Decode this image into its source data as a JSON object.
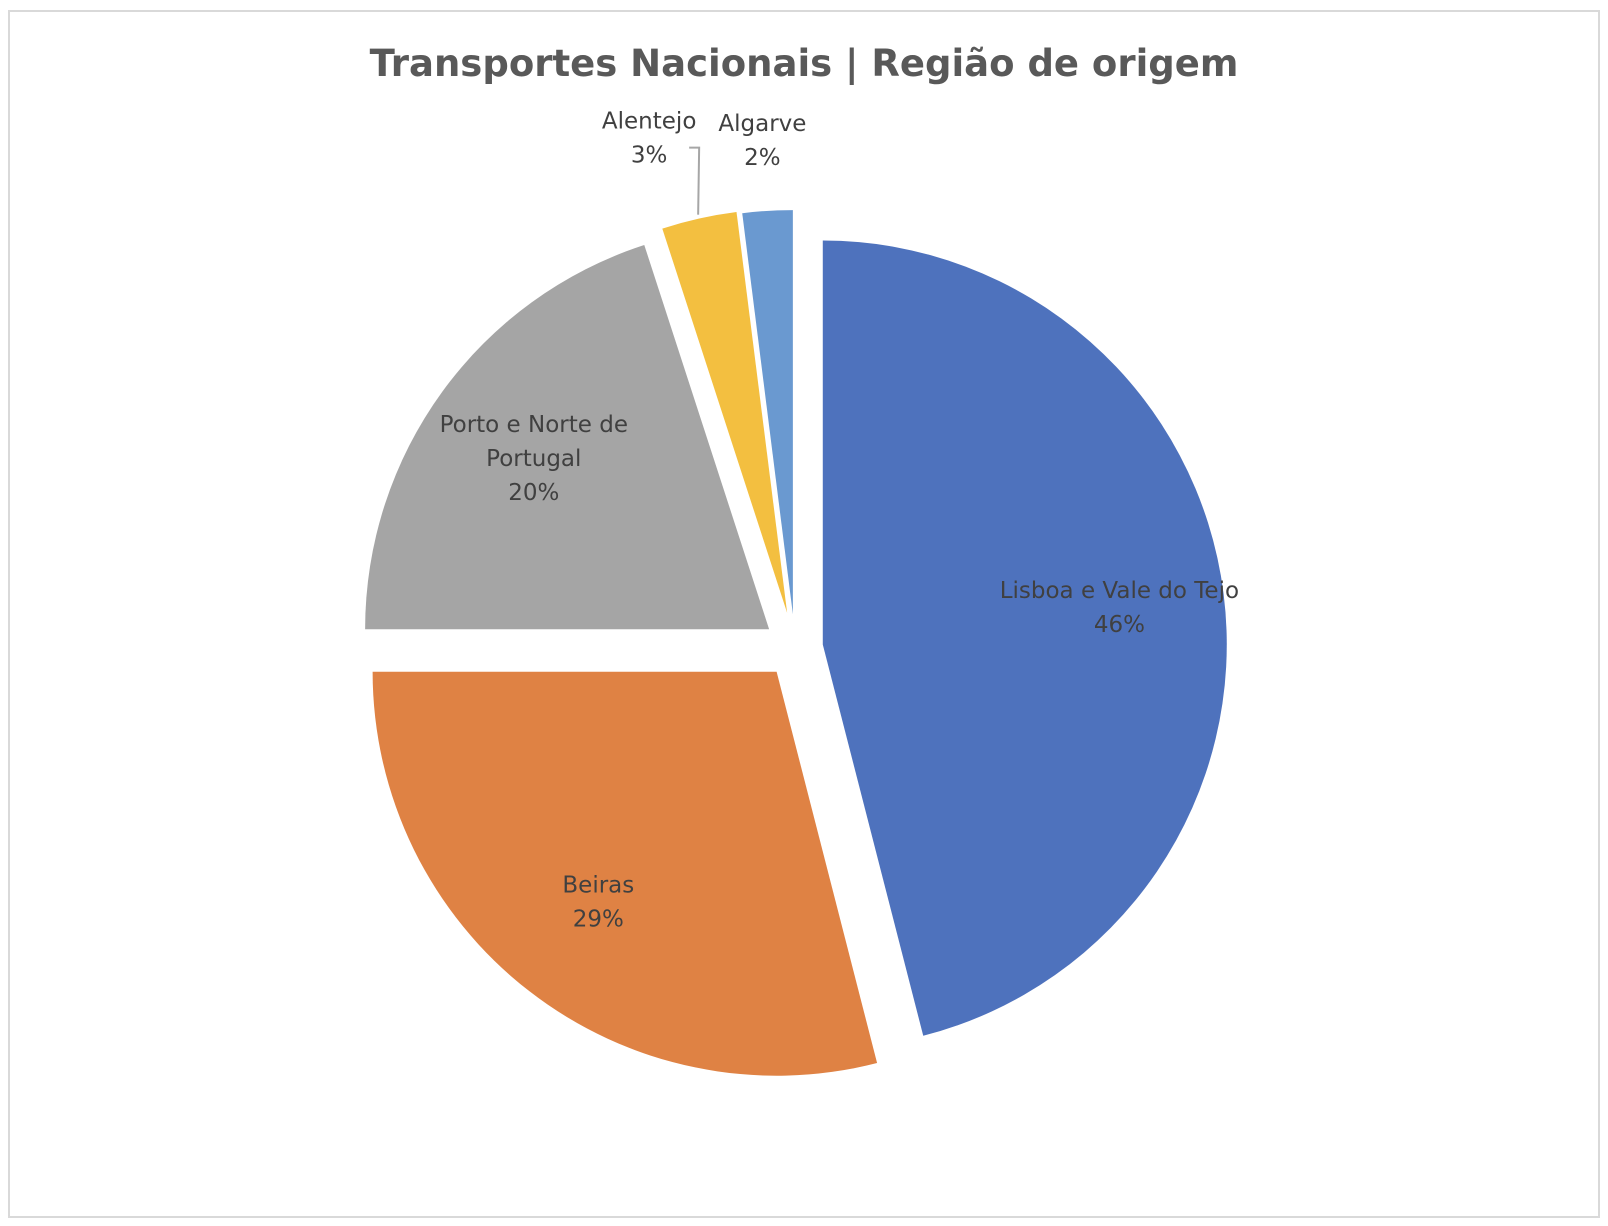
{
  "chart_data": {
    "type": "pie",
    "title": "Transportes Nacionais | Região de origem",
    "categories": [
      "Lisboa e Vale do Tejo",
      "Beiras",
      "Porto e Norte de Portugal",
      "Alentejo",
      "Algarve"
    ],
    "values": [
      46,
      29,
      20,
      3,
      2
    ],
    "value_labels": [
      "46%",
      "29%",
      "20%",
      "3%",
      "2%"
    ],
    "colors": [
      "#4e72bd",
      "#df8244",
      "#a5a5a5",
      "#f3bf40",
      "#6a99d0"
    ],
    "label_lines": {
      "Lisboa e Vale do Tejo": [
        "Lisboa e Vale do Tejo"
      ],
      "Beiras": [
        "Beiras"
      ],
      "Porto e Norte de Portugal": [
        "Porto e Norte de",
        "Portugal"
      ],
      "Alentejo": [
        "Alentejo"
      ],
      "Algarve": [
        "Algarve"
      ]
    },
    "legend": "none",
    "exploded": true
  }
}
